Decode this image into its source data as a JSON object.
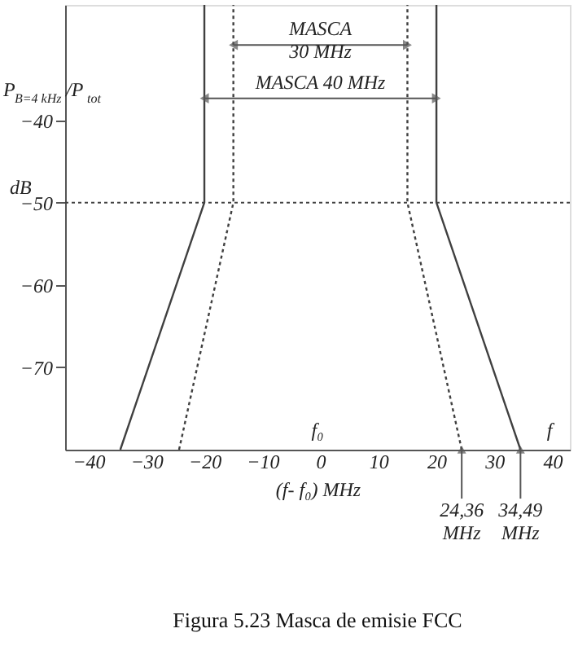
{
  "chart_data": {
    "type": "line",
    "title": "Figura 5.23 Masca de emisie FCC",
    "xlabel": "(f- f₀) MHz",
    "ylabel": "P$_{B=4 kHz}$ /P$_{tot}$",
    "series": [
      {
        "color": "#404040",
        "line_style": "solid",
        "x": [
          -34.49,
          -20,
          -20
        ],
        "values": [
          -80,
          -50,
          -26
        ]
      },
      {
        "color": "#404040",
        "line_style": "solid",
        "x": [
          34.49,
          20,
          20
        ],
        "values": [
          -80,
          -50,
          -26
        ]
      },
      {
        "color": "#404040",
        "line_style": "dotted",
        "x": [
          -24.36,
          -15,
          -15
        ],
        "values": [
          -80,
          -50,
          -26
        ]
      },
      {
        "color": "#404040",
        "line_style": "dotted",
        "x": [
          24.36,
          15,
          15
        ],
        "values": [
          -80,
          -50,
          -26
        ]
      }
    ],
    "ref_lines": [
      {
        "axis": "y",
        "value": -50,
        "label": null,
        "color": "#404040",
        "line_style": "dotted"
      }
    ],
    "annotations": [
      "MASCA\n30 MHz",
      "MASCA 40 MHz",
      "f₀",
      "f",
      {
        "text": "24,36\nMHz",
        "x": 24.36,
        "y": -80
      },
      {
        "text": "34,49\nMHz",
        "x": 34.49,
        "y": -80
      },
      "dB"
    ],
    "xlim": [
      -44,
      43
    ],
    "xticks": [
      -40,
      -30,
      -20,
      -10,
      0,
      10,
      20,
      30,
      40
    ],
    "ylim": [
      -80,
      -26
    ],
    "yticks": [
      -40,
      -50,
      -60,
      -70
    ],
    "grid": false,
    "marker": "none"
  }
}
